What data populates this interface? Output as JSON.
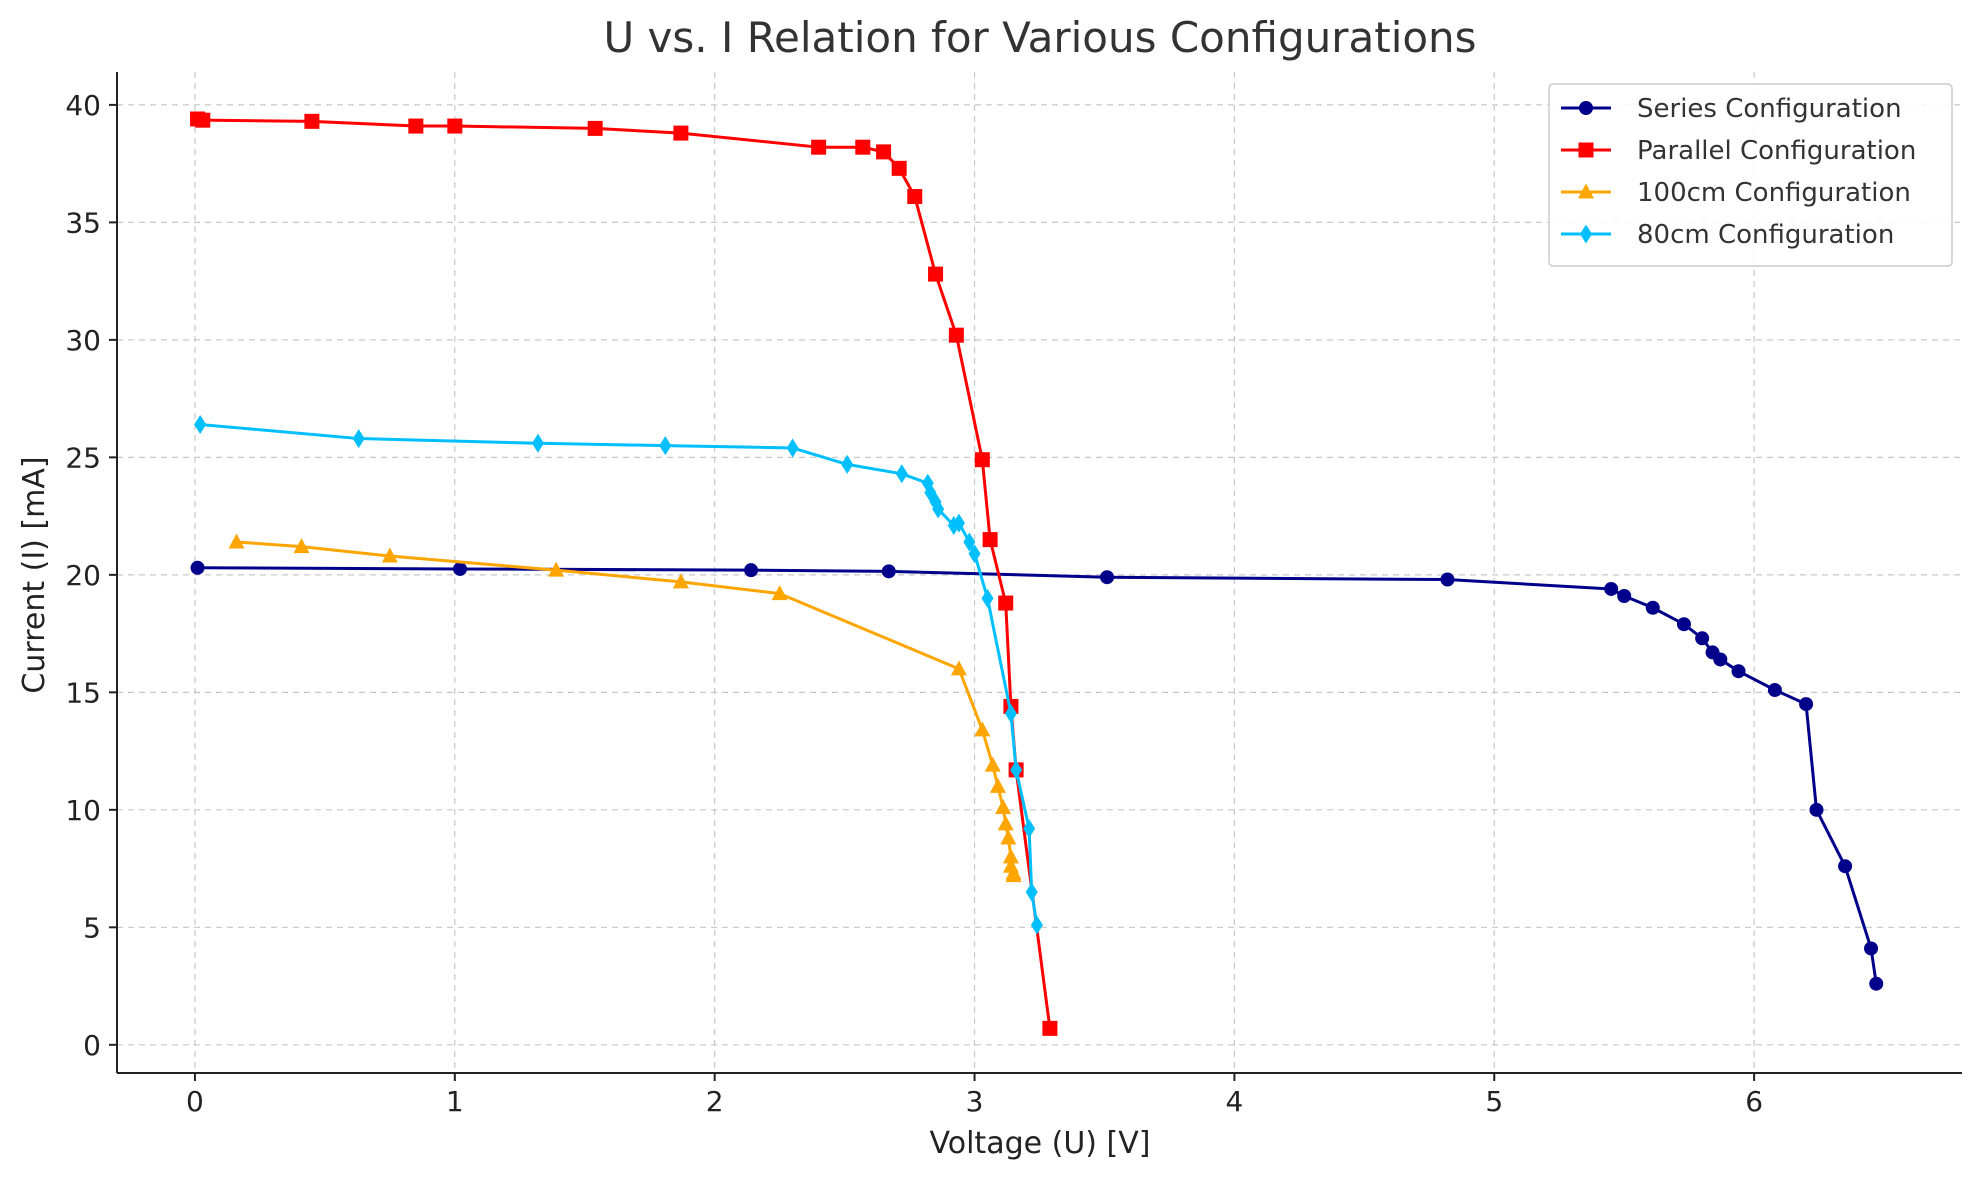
{
  "chart_data": {
    "type": "line",
    "title": "U vs. I Relation for Various Configurations",
    "xlabel": "Voltage (U) [V]",
    "ylabel": "Current (I) [mA]",
    "xlim": [
      -0.3,
      6.8
    ],
    "ylim": [
      -1.2,
      41.4
    ],
    "xticks": [
      0,
      1,
      2,
      3,
      4,
      5,
      6
    ],
    "yticks": [
      0,
      5,
      10,
      15,
      20,
      25,
      30,
      35,
      40
    ],
    "grid": true,
    "legend_position": "top-right",
    "series": [
      {
        "name": "Series Configuration",
        "color": "#00008b",
        "marker": "circle",
        "x": [
          0.01,
          1.02,
          2.14,
          2.67,
          3.51,
          4.82,
          5.45,
          5.5,
          5.61,
          5.73,
          5.8,
          5.84,
          5.87,
          5.94,
          6.08,
          6.2,
          6.24,
          6.35,
          6.45,
          6.47
        ],
        "y": [
          20.3,
          20.25,
          20.2,
          20.15,
          19.9,
          19.8,
          19.4,
          19.1,
          18.6,
          17.9,
          17.3,
          16.7,
          16.4,
          15.9,
          15.1,
          14.5,
          10.0,
          7.6,
          4.1,
          2.6
        ]
      },
      {
        "name": "Parallel Configuration",
        "color": "#ff0000",
        "marker": "square",
        "x": [
          0.01,
          0.03,
          0.45,
          0.85,
          1.0,
          1.54,
          1.87,
          2.4,
          2.57,
          2.65,
          2.71,
          2.77,
          2.85,
          2.93,
          3.03,
          3.06,
          3.12,
          3.14,
          3.16,
          3.29
        ],
        "y": [
          39.4,
          39.35,
          39.3,
          39.1,
          39.1,
          39.0,
          38.8,
          38.2,
          38.2,
          38.0,
          37.3,
          36.1,
          32.8,
          30.2,
          24.9,
          21.5,
          18.8,
          14.4,
          11.7,
          0.7
        ]
      },
      {
        "name": "100cm Configuration",
        "color": "#ffa500",
        "marker": "triangle",
        "x": [
          0.16,
          0.41,
          0.75,
          1.39,
          1.87,
          2.25,
          2.94,
          3.03,
          3.07,
          3.09,
          3.11,
          3.12,
          3.13,
          3.14,
          3.14,
          3.15,
          3.15
        ],
        "y": [
          21.4,
          21.2,
          20.8,
          20.2,
          19.7,
          19.2,
          16.0,
          13.4,
          11.9,
          11.0,
          10.1,
          9.4,
          8.8,
          8.0,
          7.6,
          7.3,
          7.2
        ]
      },
      {
        "name": "80cm Configuration",
        "color": "#00bfff",
        "marker": "diamond",
        "x": [
          0.02,
          0.63,
          1.32,
          1.81,
          2.3,
          2.51,
          2.72,
          2.82,
          2.83,
          2.85,
          2.86,
          2.92,
          2.94,
          2.98,
          3.0,
          3.05,
          3.14,
          3.16,
          3.21,
          3.22,
          3.24
        ],
        "y": [
          26.4,
          25.8,
          25.6,
          25.5,
          25.4,
          24.7,
          24.3,
          23.9,
          23.5,
          23.1,
          22.8,
          22.1,
          22.2,
          21.4,
          20.9,
          19.0,
          14.1,
          11.7,
          9.2,
          6.5,
          5.1
        ]
      }
    ]
  }
}
